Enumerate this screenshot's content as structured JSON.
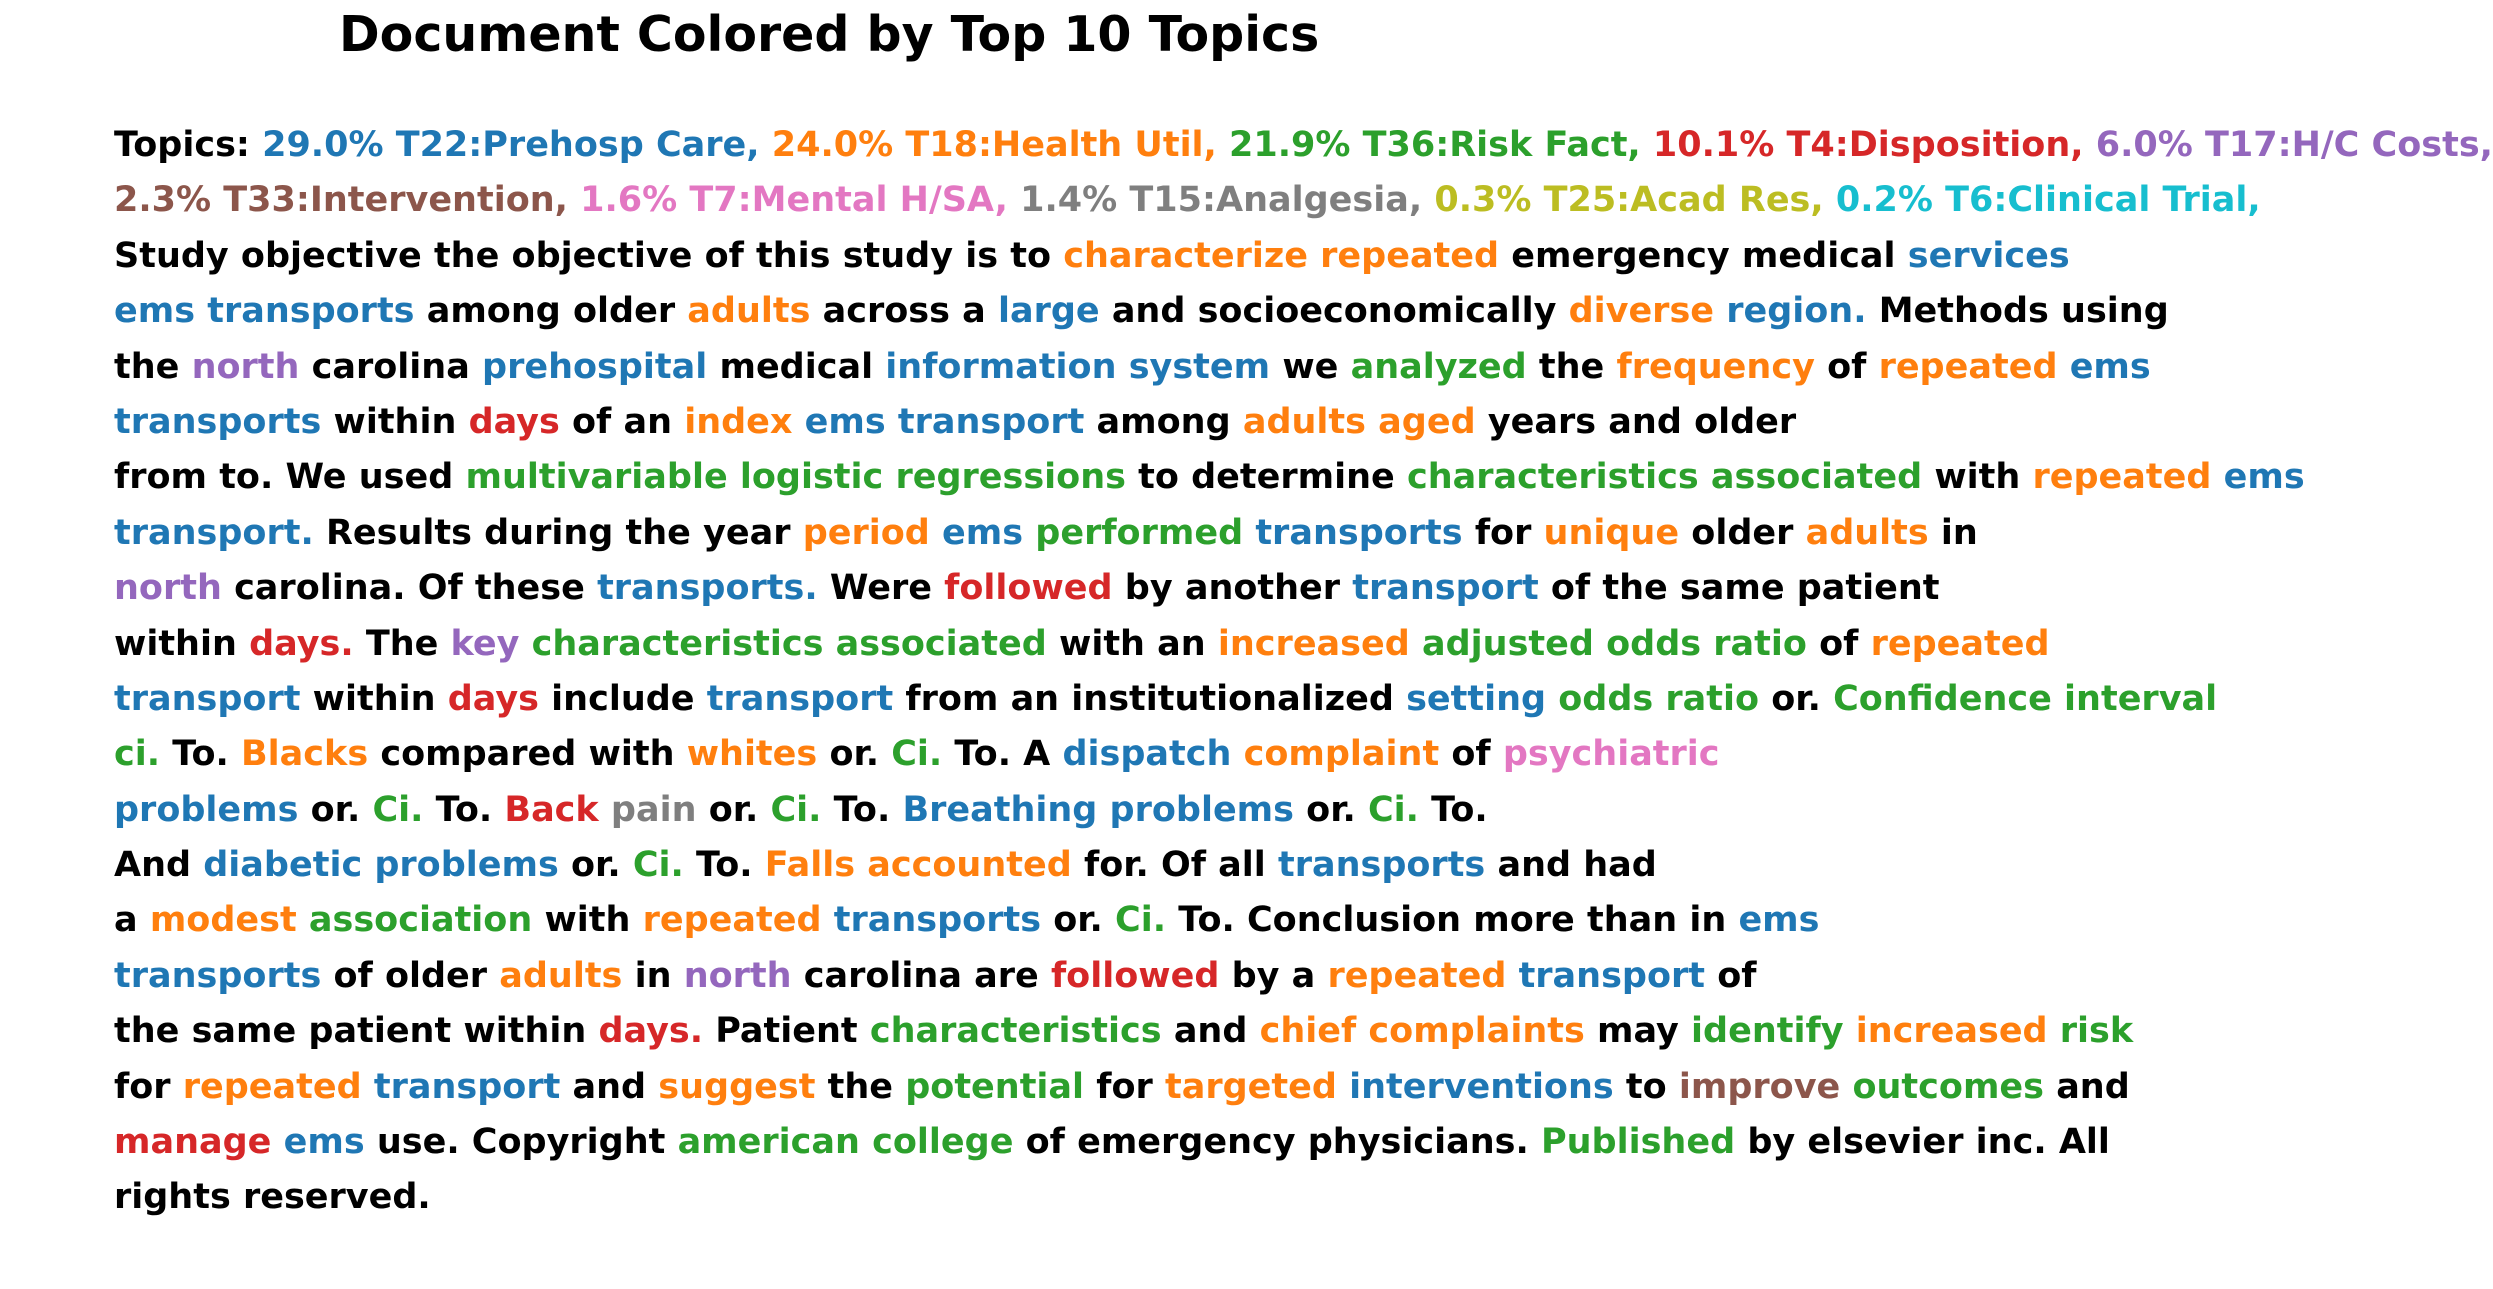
{
  "title": "Document Colored by Top 10 Topics",
  "colors": {
    "none": "#000000",
    "T22": "#1f77b4",
    "T18": "#ff7f0e",
    "T36": "#2ca02c",
    "T4": "#d62728",
    "T17": "#9467bd",
    "T33": "#8c564b",
    "T7": "#e377c2",
    "T15": "#7f7f7f",
    "T25": "#bcbd22",
    "T6": "#17becf"
  },
  "topics": [
    {
      "id": "T22",
      "share": "29.0%",
      "label": "29.0% T22:Prehosp Care,"
    },
    {
      "id": "T18",
      "share": "24.0%",
      "label": "24.0% T18:Health Util,"
    },
    {
      "id": "T36",
      "share": "21.9%",
      "label": "21.9% T36:Risk Fact,"
    },
    {
      "id": "T4",
      "share": "10.1%",
      "label": "10.1% T4:Disposition,"
    },
    {
      "id": "T17",
      "share": "6.0%",
      "label": "6.0% T17:H/C Costs,"
    },
    {
      "id": "T33",
      "share": "2.3%",
      "label": "2.3% T33:Intervention,"
    },
    {
      "id": "T7",
      "share": "1.6%",
      "label": "1.6% T7:Mental H/SA,"
    },
    {
      "id": "T15",
      "share": "1.4%",
      "label": "1.4% T15:Analgesia,"
    },
    {
      "id": "T25",
      "share": "0.3%",
      "label": "0.3% T25:Acad Res,"
    },
    {
      "id": "T6",
      "share": "0.2%",
      "label": "0.2% T6:Clinical Trial,"
    }
  ],
  "lines": [
    [
      [
        "Topics:",
        ""
      ],
      [
        "29.0% T22:Prehosp Care,",
        "T22"
      ],
      [
        "24.0% T18:Health Util,",
        "T18"
      ],
      [
        "21.9% T36:Risk Fact,",
        "T36"
      ],
      [
        "10.1% T4:Disposition,",
        "T4"
      ],
      [
        "6.0% T17:H/C Costs,",
        "T17"
      ]
    ],
    [
      [
        "2.3% T33:Intervention,",
        "T33"
      ],
      [
        "1.6% T7:Mental H/SA,",
        "T7"
      ],
      [
        "1.4% T15:Analgesia,",
        "T15"
      ],
      [
        "0.3% T25:Acad Res,",
        "T25"
      ],
      [
        "0.2% T6:Clinical Trial,",
        "T6"
      ]
    ],
    [
      [
        "Study objective the objective of this study is to",
        ""
      ],
      [
        "characterize repeated",
        "T18"
      ],
      [
        "emergency medical",
        ""
      ],
      [
        "services",
        "T22"
      ]
    ],
    [
      [
        "ems transports",
        "T22"
      ],
      [
        "among older",
        ""
      ],
      [
        "adults",
        "T18"
      ],
      [
        "across a",
        ""
      ],
      [
        "large",
        "T22"
      ],
      [
        "and socioeconomically",
        ""
      ],
      [
        "diverse",
        "T18"
      ],
      [
        "region.",
        "T22"
      ],
      [
        "Methods using",
        ""
      ]
    ],
    [
      [
        "the",
        ""
      ],
      [
        "north",
        "T17"
      ],
      [
        "carolina",
        ""
      ],
      [
        "prehospital",
        "T22"
      ],
      [
        "medical",
        ""
      ],
      [
        "information system",
        "T22"
      ],
      [
        "we",
        ""
      ],
      [
        "analyzed",
        "T36"
      ],
      [
        "the",
        ""
      ],
      [
        "frequency",
        "T18"
      ],
      [
        "of",
        ""
      ],
      [
        "repeated",
        "T18"
      ],
      [
        "ems",
        "T22"
      ]
    ],
    [
      [
        "transports",
        "T22"
      ],
      [
        "within",
        ""
      ],
      [
        "days",
        "T4"
      ],
      [
        "of an",
        ""
      ],
      [
        "index",
        "T18"
      ],
      [
        "ems transport",
        "T22"
      ],
      [
        "among",
        ""
      ],
      [
        "adults aged",
        "T18"
      ],
      [
        "years and older",
        ""
      ]
    ],
    [
      [
        "from to. We used",
        ""
      ],
      [
        "multivariable logistic regressions",
        "T36"
      ],
      [
        "to determine",
        ""
      ],
      [
        "characteristics associated",
        "T36"
      ],
      [
        "with",
        ""
      ],
      [
        "repeated",
        "T18"
      ],
      [
        "ems",
        "T22"
      ]
    ],
    [
      [
        "transport.",
        "T22"
      ],
      [
        "Results during the year",
        ""
      ],
      [
        "period",
        "T18"
      ],
      [
        "ems",
        "T22"
      ],
      [
        "performed",
        "T36"
      ],
      [
        "transports",
        "T22"
      ],
      [
        "for",
        ""
      ],
      [
        "unique",
        "T18"
      ],
      [
        "older",
        ""
      ],
      [
        "adults",
        "T18"
      ],
      [
        "in",
        ""
      ]
    ],
    [
      [
        "north",
        "T17"
      ],
      [
        "carolina. Of these",
        ""
      ],
      [
        "transports.",
        "T22"
      ],
      [
        "Were",
        ""
      ],
      [
        "followed",
        "T4"
      ],
      [
        "by another",
        ""
      ],
      [
        "transport",
        "T22"
      ],
      [
        "of the same patient",
        ""
      ]
    ],
    [
      [
        "within",
        ""
      ],
      [
        "days.",
        "T4"
      ],
      [
        "The",
        ""
      ],
      [
        "key",
        "T17"
      ],
      [
        "characteristics associated",
        "T36"
      ],
      [
        "with an",
        ""
      ],
      [
        "increased",
        "T18"
      ],
      [
        "adjusted odds ratio",
        "T36"
      ],
      [
        "of",
        ""
      ],
      [
        "repeated",
        "T18"
      ]
    ],
    [
      [
        "transport",
        "T22"
      ],
      [
        "within",
        ""
      ],
      [
        "days",
        "T4"
      ],
      [
        "include",
        ""
      ],
      [
        "transport",
        "T22"
      ],
      [
        "from an institutionalized",
        ""
      ],
      [
        "setting",
        "T22"
      ],
      [
        "odds ratio",
        "T36"
      ],
      [
        "or.",
        ""
      ],
      [
        "Confidence interval",
        "T36"
      ]
    ],
    [
      [
        "ci.",
        "T36"
      ],
      [
        "To.",
        ""
      ],
      [
        "Blacks",
        "T18"
      ],
      [
        "compared with",
        ""
      ],
      [
        "whites",
        "T18"
      ],
      [
        "or.",
        ""
      ],
      [
        "Ci.",
        "T36"
      ],
      [
        "To. A",
        ""
      ],
      [
        "dispatch",
        "T22"
      ],
      [
        "complaint",
        "T18"
      ],
      [
        "of",
        ""
      ],
      [
        "psychiatric",
        "T7"
      ]
    ],
    [
      [
        "problems",
        "T22"
      ],
      [
        "or.",
        ""
      ],
      [
        "Ci.",
        "T36"
      ],
      [
        "To.",
        ""
      ],
      [
        "Back",
        "T4"
      ],
      [
        "pain",
        "T15"
      ],
      [
        "or.",
        ""
      ],
      [
        "Ci.",
        "T36"
      ],
      [
        "To.",
        ""
      ],
      [
        "Breathing problems",
        "T22"
      ],
      [
        "or.",
        ""
      ],
      [
        "Ci.",
        "T36"
      ],
      [
        "To.",
        ""
      ]
    ],
    [
      [
        "And",
        ""
      ],
      [
        "diabetic problems",
        "T22"
      ],
      [
        "or.",
        ""
      ],
      [
        "Ci.",
        "T36"
      ],
      [
        "To.",
        ""
      ],
      [
        "Falls accounted",
        "T18"
      ],
      [
        "for. Of all",
        ""
      ],
      [
        "transports",
        "T22"
      ],
      [
        "and had",
        ""
      ]
    ],
    [
      [
        "a",
        ""
      ],
      [
        "modest",
        "T18"
      ],
      [
        "association",
        "T36"
      ],
      [
        "with",
        ""
      ],
      [
        "repeated",
        "T18"
      ],
      [
        "transports",
        "T22"
      ],
      [
        "or.",
        ""
      ],
      [
        "Ci.",
        "T36"
      ],
      [
        "To. Conclusion more than in",
        ""
      ],
      [
        "ems",
        "T22"
      ]
    ],
    [
      [
        "transports",
        "T22"
      ],
      [
        "of older",
        ""
      ],
      [
        "adults",
        "T18"
      ],
      [
        "in",
        ""
      ],
      [
        "north",
        "T17"
      ],
      [
        "carolina are",
        ""
      ],
      [
        "followed",
        "T4"
      ],
      [
        "by a",
        ""
      ],
      [
        "repeated",
        "T18"
      ],
      [
        "transport",
        "T22"
      ],
      [
        "of",
        ""
      ]
    ],
    [
      [
        "the same patient within",
        ""
      ],
      [
        "days.",
        "T4"
      ],
      [
        "Patient",
        ""
      ],
      [
        "characteristics",
        "T36"
      ],
      [
        "and",
        ""
      ],
      [
        "chief complaints",
        "T18"
      ],
      [
        "may",
        ""
      ],
      [
        "identify",
        "T36"
      ],
      [
        "increased",
        "T18"
      ],
      [
        "risk",
        "T36"
      ]
    ],
    [
      [
        "for",
        ""
      ],
      [
        "repeated",
        "T18"
      ],
      [
        "transport",
        "T22"
      ],
      [
        "and",
        ""
      ],
      [
        "suggest",
        "T18"
      ],
      [
        "the",
        ""
      ],
      [
        "potential",
        "T36"
      ],
      [
        "for",
        ""
      ],
      [
        "targeted",
        "T18"
      ],
      [
        "interventions",
        "T22"
      ],
      [
        "to",
        ""
      ],
      [
        "improve",
        "T33"
      ],
      [
        "outcomes",
        "T36"
      ],
      [
        "and",
        ""
      ]
    ],
    [
      [
        "manage",
        "T4"
      ],
      [
        "ems",
        "T22"
      ],
      [
        "use. Copyright",
        ""
      ],
      [
        "american college",
        "T36"
      ],
      [
        "of emergency physicians.",
        ""
      ],
      [
        "Published",
        "T36"
      ],
      [
        "by elsevier inc. All",
        ""
      ]
    ],
    [
      [
        "rights reserved.",
        ""
      ]
    ]
  ]
}
